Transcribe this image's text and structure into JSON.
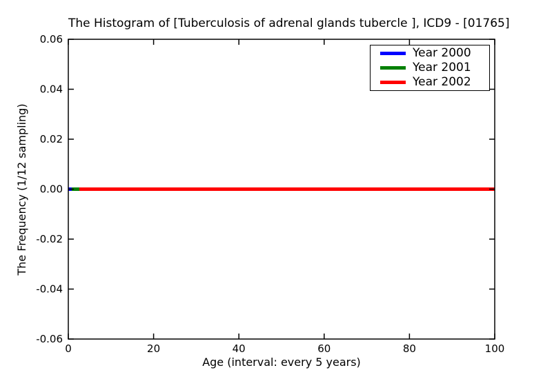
{
  "chart_data": {
    "type": "line",
    "title": "The Histogram of [Tuberculosis of adrenal glands tubercle ], ICD9 - [01765]",
    "xlabel": "Age (interval: every 5 years)",
    "ylabel": "The Frequency (1/12 sampling)",
    "xlim": [
      0,
      100
    ],
    "ylim": [
      -0.06,
      0.06
    ],
    "xticks": [
      0,
      20,
      40,
      60,
      80,
      100
    ],
    "xtick_labels": [
      "0",
      "20",
      "40",
      "60",
      "80",
      "100"
    ],
    "yticks": [
      0.06,
      0.04,
      0.02,
      0,
      -0.02,
      -0.04,
      -0.06
    ],
    "ytick_labels": [
      "0.06",
      "0.04",
      "0.02",
      "0.00",
      "-0.02",
      "-0.04",
      "-0.06"
    ],
    "grid": false,
    "axis_color": "#000000",
    "background_color": "#ffffff",
    "line_width": 5,
    "legend": {
      "position": "upper-right",
      "entries": [
        {
          "label": "Year 2000",
          "color": "#0000ff"
        },
        {
          "label": "Year 2001",
          "color": "#008000"
        },
        {
          "label": "Year 2002",
          "color": "#ff0000"
        }
      ]
    },
    "series": [
      {
        "name": "Year 2000",
        "color": "#0000ff",
        "x": [
          0,
          0.8
        ],
        "values": [
          0,
          0
        ]
      },
      {
        "name": "Year 2001",
        "color": "#008000",
        "x": [
          0,
          2.6
        ],
        "values": [
          0,
          0
        ]
      },
      {
        "name": "Year 2002",
        "color": "#ff0000",
        "x": [
          0,
          100
        ],
        "values": [
          0,
          0
        ]
      }
    ]
  }
}
